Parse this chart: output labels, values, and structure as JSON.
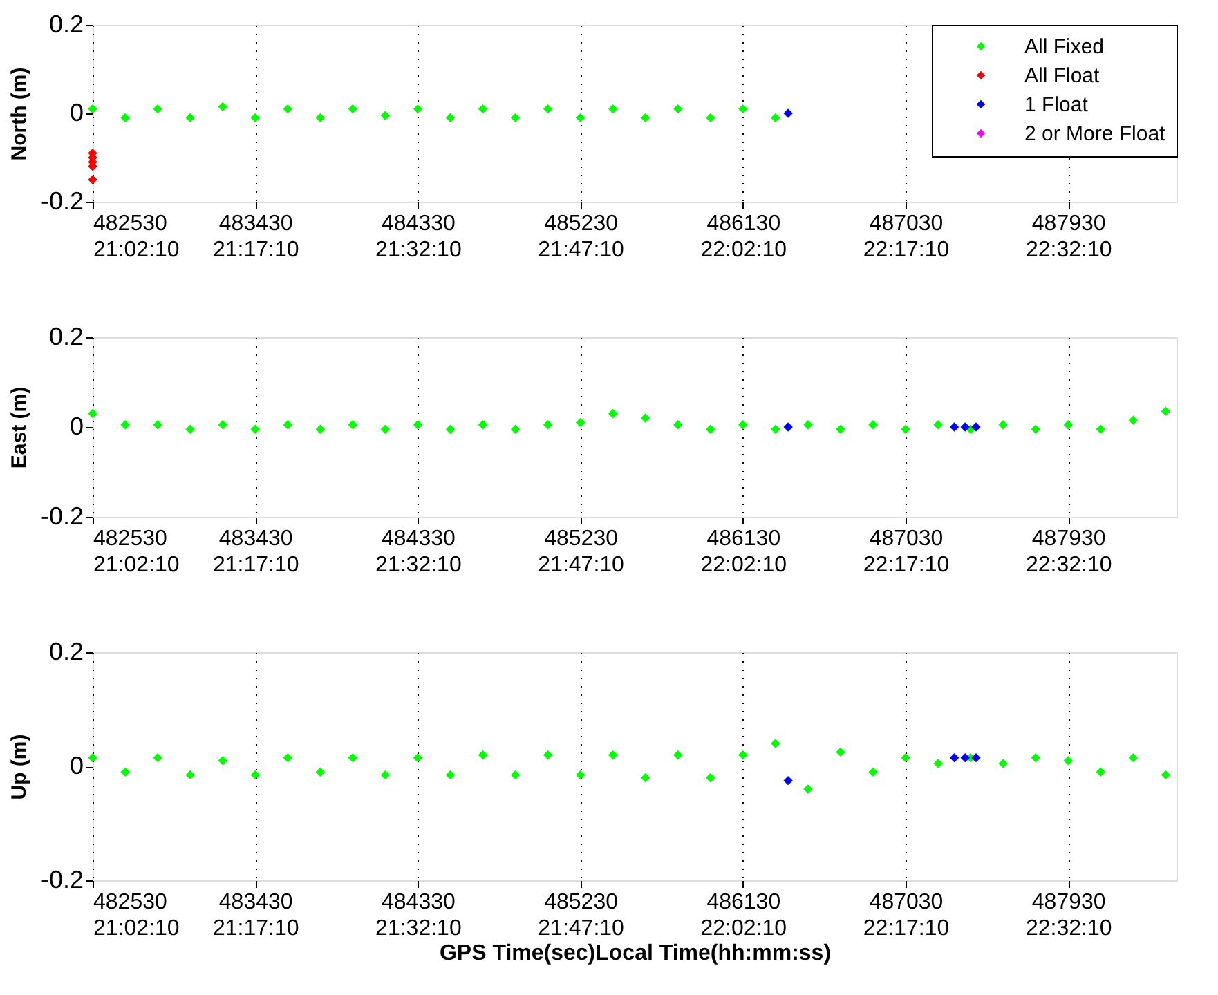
{
  "chart_data": [
    {
      "type": "scatter",
      "ylabel": "North (m)",
      "xlim": [
        482530,
        488530
      ],
      "ylim": [
        -0.2,
        0.2
      ],
      "yticks": [
        -0.2,
        0,
        0.2
      ],
      "xticks": [
        482530,
        483430,
        484330,
        485230,
        486130,
        487030,
        487930
      ],
      "x2lim": [
        21.036111,
        22.702778
      ],
      "x2ticks": [
        {
          "value": 21.036111,
          "label": "21:02:10"
        },
        {
          "value": 21.286111,
          "label": "21:17:10"
        },
        {
          "value": 21.536111,
          "label": "21:32:10"
        },
        {
          "value": 21.786111,
          "label": "21:47:10"
        },
        {
          "value": 22.036111,
          "label": "22:02:10"
        },
        {
          "value": 22.286111,
          "label": "22:17:10"
        },
        {
          "value": 22.536111,
          "label": "22:32:10"
        }
      ],
      "grid": "x",
      "marker": "diamond",
      "legend": "top right",
      "series": [
        {
          "name": "All Fixed",
          "color": "#00ff00",
          "x": [
            482530,
            482710,
            482890,
            483070,
            483250,
            483430,
            483610,
            483790,
            483970,
            484150,
            484330,
            484510,
            484690,
            484870,
            485050,
            485230,
            485410,
            485590,
            485770,
            485950,
            486130,
            486310
          ],
          "values": [
            0.01,
            -0.01,
            0.01,
            -0.01,
            0.015,
            -0.01,
            0.01,
            -0.01,
            0.01,
            -0.005,
            0.01,
            -0.01,
            0.01,
            -0.01,
            0.01,
            -0.01,
            0.01,
            -0.01,
            0.01,
            -0.01,
            0.01,
            -0.01
          ]
        },
        {
          "name": "All Float",
          "color": "#ff0000",
          "x": [
            482530,
            482530,
            482530,
            482530,
            482530
          ],
          "values": [
            -0.09,
            -0.1,
            -0.11,
            -0.12,
            -0.15
          ]
        },
        {
          "name": "1 Float",
          "color": "#0000ff",
          "x": [
            486380
          ],
          "values": [
            0.0
          ]
        },
        {
          "name": "2 or More Float",
          "color": "#ff00ff"
        }
      ]
    },
    {
      "type": "scatter",
      "ylabel": "East  (m)",
      "xlim": [
        482530,
        488530
      ],
      "ylim": [
        -0.2,
        0.2
      ],
      "yticks": [
        -0.2,
        0,
        0.2
      ],
      "xticks": [
        482530,
        483430,
        484330,
        485230,
        486130,
        487030,
        487930
      ],
      "x2lim": [
        21.036111,
        22.702778
      ],
      "x2ticks": [
        {
          "value": 21.036111,
          "label": "21:02:10"
        },
        {
          "value": 21.286111,
          "label": "21:17:10"
        },
        {
          "value": 21.536111,
          "label": "21:32:10"
        },
        {
          "value": 21.786111,
          "label": "21:47:10"
        },
        {
          "value": 22.036111,
          "label": "22:02:10"
        },
        {
          "value": 22.286111,
          "label": "22:17:10"
        },
        {
          "value": 22.536111,
          "label": "22:32:10"
        }
      ],
      "grid": "x",
      "marker": "diamond",
      "series": [
        {
          "color": "#00ff00",
          "x": [
            482530,
            482710,
            482890,
            483070,
            483250,
            483430,
            483610,
            483790,
            483970,
            484150,
            484330,
            484510,
            484690,
            484870,
            485050,
            485230,
            485410,
            485590,
            485770,
            485950,
            486130,
            486310,
            486490,
            486670,
            486850,
            487030,
            487210,
            487390,
            487570,
            487750,
            487930,
            488110,
            488290,
            488470
          ],
          "values": [
            0.03,
            0.005,
            0.005,
            -0.005,
            0.005,
            -0.005,
            0.005,
            -0.005,
            0.005,
            -0.005,
            0.005,
            -0.005,
            0.005,
            -0.005,
            0.005,
            0.01,
            0.03,
            0.02,
            0.005,
            -0.005,
            0.005,
            -0.005,
            0.005,
            -0.005,
            0.005,
            -0.005,
            0.005,
            -0.005,
            0.005,
            -0.005,
            0.005,
            -0.005,
            0.015,
            0.035
          ]
        },
        {
          "color": "#0000ff",
          "x": [
            486380,
            487300,
            487360,
            487420
          ],
          "values": [
            0.0,
            0.0,
            0.0,
            0.0
          ]
        }
      ]
    },
    {
      "type": "scatter",
      "ylabel": "Up (m)",
      "x2label": "GPS Time(sec)Local Time(hh:mm:ss)",
      "xlim": [
        482530,
        488530
      ],
      "ylim": [
        -0.2,
        0.2
      ],
      "yticks": [
        -0.2,
        0,
        0.2
      ],
      "xticks": [
        482530,
        483430,
        484330,
        485230,
        486130,
        487030,
        487930
      ],
      "x2lim": [
        21.036111,
        22.702778
      ],
      "x2ticks": [
        {
          "value": 21.036111,
          "label": "21:02:10"
        },
        {
          "value": 21.286111,
          "label": "21:17:10"
        },
        {
          "value": 21.536111,
          "label": "21:32:10"
        },
        {
          "value": 21.786111,
          "label": "21:47:10"
        },
        {
          "value": 22.036111,
          "label": "22:02:10"
        },
        {
          "value": 22.286111,
          "label": "22:17:10"
        },
        {
          "value": 22.536111,
          "label": "22:32:10"
        }
      ],
      "grid": "x",
      "marker": "diamond",
      "series": [
        {
          "color": "#00ff00",
          "x": [
            482530,
            482710,
            482890,
            483070,
            483250,
            483430,
            483610,
            483790,
            483970,
            484150,
            484330,
            484510,
            484690,
            484870,
            485050,
            485230,
            485410,
            485590,
            485770,
            485950,
            486130,
            486310,
            486490,
            486670,
            486850,
            487030,
            487210,
            487390,
            487570,
            487750,
            487930,
            488110,
            488290,
            488470
          ],
          "values": [
            0.015,
            -0.01,
            0.015,
            -0.015,
            0.01,
            -0.015,
            0.015,
            -0.01,
            0.015,
            -0.015,
            0.015,
            -0.015,
            0.02,
            -0.015,
            0.02,
            -0.015,
            0.02,
            -0.02,
            0.02,
            -0.02,
            0.02,
            0.04,
            -0.04,
            0.025,
            -0.01,
            0.015,
            0.005,
            0.015,
            0.005,
            0.015,
            0.01,
            -0.01,
            0.015,
            -0.015
          ]
        },
        {
          "color": "#0000ff",
          "x": [
            486380,
            487300,
            487360,
            487420
          ],
          "values": [
            -0.025,
            0.015,
            0.015,
            0.015
          ]
        }
      ]
    }
  ]
}
